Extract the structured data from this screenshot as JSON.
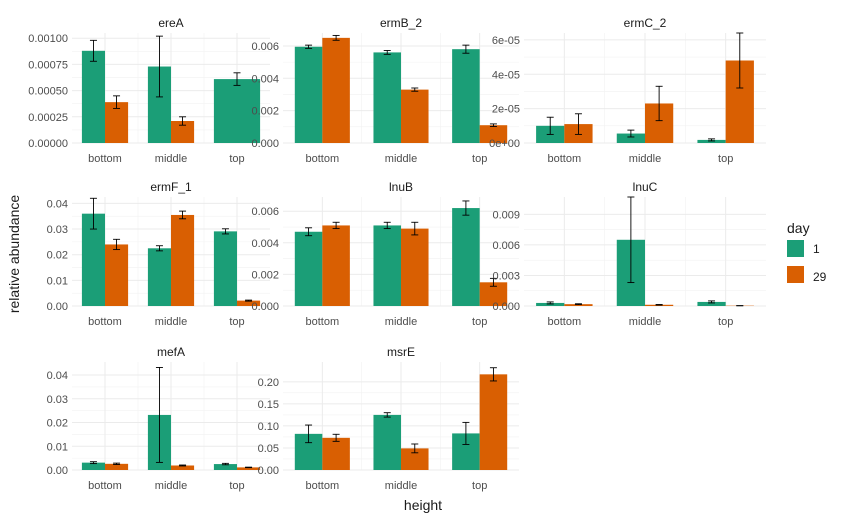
{
  "chart_data": {
    "type": "bar",
    "xlabel": "height",
    "ylabel": "relative abundance",
    "legend": {
      "title": "day",
      "position": "right",
      "entries": [
        {
          "label": "1",
          "color": "#1B9E77"
        },
        {
          "label": "29",
          "color": "#D95F02"
        }
      ]
    },
    "categories": [
      "bottom",
      "middle",
      "top"
    ],
    "grid": true,
    "panels": [
      {
        "title": "ereA",
        "ylim": [
          0,
          0.00105
        ],
        "yticks": [
          0,
          0.00025,
          0.0005,
          0.00075,
          0.001
        ],
        "ytick_labels": [
          "0.00000",
          "0.00025",
          "0.00050",
          "0.00075",
          "0.00100"
        ],
        "series": [
          {
            "day": "1",
            "values": [
              0.00088,
              0.00073,
              0.00061
            ],
            "err": [
              0.0001,
              0.00029,
              6e-05
            ]
          },
          {
            "day": "29",
            "values": [
              0.00039,
              0.00021,
              null
            ],
            "err": [
              6e-05,
              4e-05,
              null
            ]
          }
        ]
      },
      {
        "title": "ermB_2",
        "ylim": [
          0,
          0.0068
        ],
        "yticks": [
          0,
          0.002,
          0.004,
          0.006
        ],
        "ytick_labels": [
          "0.000",
          "0.002",
          "0.004",
          "0.006"
        ],
        "series": [
          {
            "day": "1",
            "values": [
              0.00595,
              0.0056,
              0.0058
            ],
            "err": [
              0.0001,
              0.00012,
              0.00025
            ]
          },
          {
            "day": "29",
            "values": [
              0.0065,
              0.0033,
              0.0011
            ],
            "err": [
              0.00015,
              0.0001,
              8e-05
            ]
          }
        ]
      },
      {
        "title": "ermC_2",
        "ylim": [
          0,
          6.4e-05
        ],
        "yticks": [
          0,
          2e-05,
          4e-05,
          6e-05
        ],
        "ytick_labels": [
          "0e+00",
          "2e-05",
          "4e-05",
          "6e-05"
        ],
        "series": [
          {
            "day": "1",
            "values": [
              1e-05,
              5.5e-06,
              1.8e-06
            ],
            "err": [
              5e-06,
              2e-06,
              6e-07
            ]
          },
          {
            "day": "29",
            "values": [
              1.1e-05,
              2.3e-05,
              4.8e-05
            ],
            "err": [
              6e-06,
              1e-05,
              1.6e-05
            ]
          }
        ]
      },
      {
        "title": "ermF_1",
        "ylim": [
          0,
          0.0425
        ],
        "yticks": [
          0,
          0.01,
          0.02,
          0.03,
          0.04
        ],
        "ytick_labels": [
          "0.00",
          "0.01",
          "0.02",
          "0.03",
          "0.04"
        ],
        "series": [
          {
            "day": "1",
            "values": [
              0.036,
              0.0225,
              0.0291
            ],
            "err": [
              0.006,
              0.001,
              0.001
            ]
          },
          {
            "day": "29",
            "values": [
              0.024,
              0.0355,
              0.0021
            ],
            "err": [
              0.002,
              0.0015,
              0.0002
            ]
          }
        ]
      },
      {
        "title": "lnuB",
        "ylim": [
          0,
          0.0069
        ],
        "yticks": [
          0,
          0.002,
          0.004,
          0.006
        ],
        "ytick_labels": [
          "0.000",
          "0.002",
          "0.004",
          "0.006"
        ],
        "series": [
          {
            "day": "1",
            "values": [
              0.0047,
              0.0051,
              0.0062
            ],
            "err": [
              0.00025,
              0.0002,
              0.00045
            ]
          },
          {
            "day": "29",
            "values": [
              0.0051,
              0.0049,
              0.0015
            ],
            "err": [
              0.0002,
              0.0004,
              0.00025
            ]
          }
        ]
      },
      {
        "title": "lnuC",
        "ylim": [
          0,
          0.0107
        ],
        "yticks": [
          0,
          0.003,
          0.006,
          0.009
        ],
        "ytick_labels": [
          "0.000",
          "0.003",
          "0.006",
          "0.009"
        ],
        "series": [
          {
            "day": "1",
            "values": [
              0.0003,
              0.0065,
              0.0004
            ],
            "err": [
              0.0001,
              0.0042,
              0.0001
            ]
          },
          {
            "day": "29",
            "values": [
              0.00018,
              0.00012,
              3e-05
            ],
            "err": [
              4e-05,
              3e-05,
              1e-05
            ]
          }
        ]
      },
      {
        "title": "mefA",
        "ylim": [
          0,
          0.0455
        ],
        "yticks": [
          0,
          0.01,
          0.02,
          0.03,
          0.04
        ],
        "ytick_labels": [
          "0.00",
          "0.01",
          "0.02",
          "0.03",
          "0.04"
        ],
        "series": [
          {
            "day": "1",
            "values": [
              0.0031,
              0.0232,
              0.0025
            ],
            "err": [
              0.0004,
              0.02,
              0.0003
            ]
          },
          {
            "day": "29",
            "values": [
              0.0026,
              0.0019,
              0.0011
            ],
            "err": [
              0.0003,
              0.0002,
              0.0001
            ]
          }
        ]
      },
      {
        "title": "msrE",
        "ylim": [
          0,
          0.245
        ],
        "yticks": [
          0,
          0.05,
          0.1,
          0.15,
          0.2
        ],
        "ytick_labels": [
          "0.00",
          "0.05",
          "0.10",
          "0.15",
          "0.20"
        ],
        "series": [
          {
            "day": "1",
            "values": [
              0.082,
              0.125,
              0.083
            ],
            "err": [
              0.02,
              0.005,
              0.025
            ]
          },
          {
            "day": "29",
            "values": [
              0.073,
              0.049,
              0.217
            ],
            "err": [
              0.008,
              0.01,
              0.015
            ]
          }
        ]
      }
    ]
  }
}
